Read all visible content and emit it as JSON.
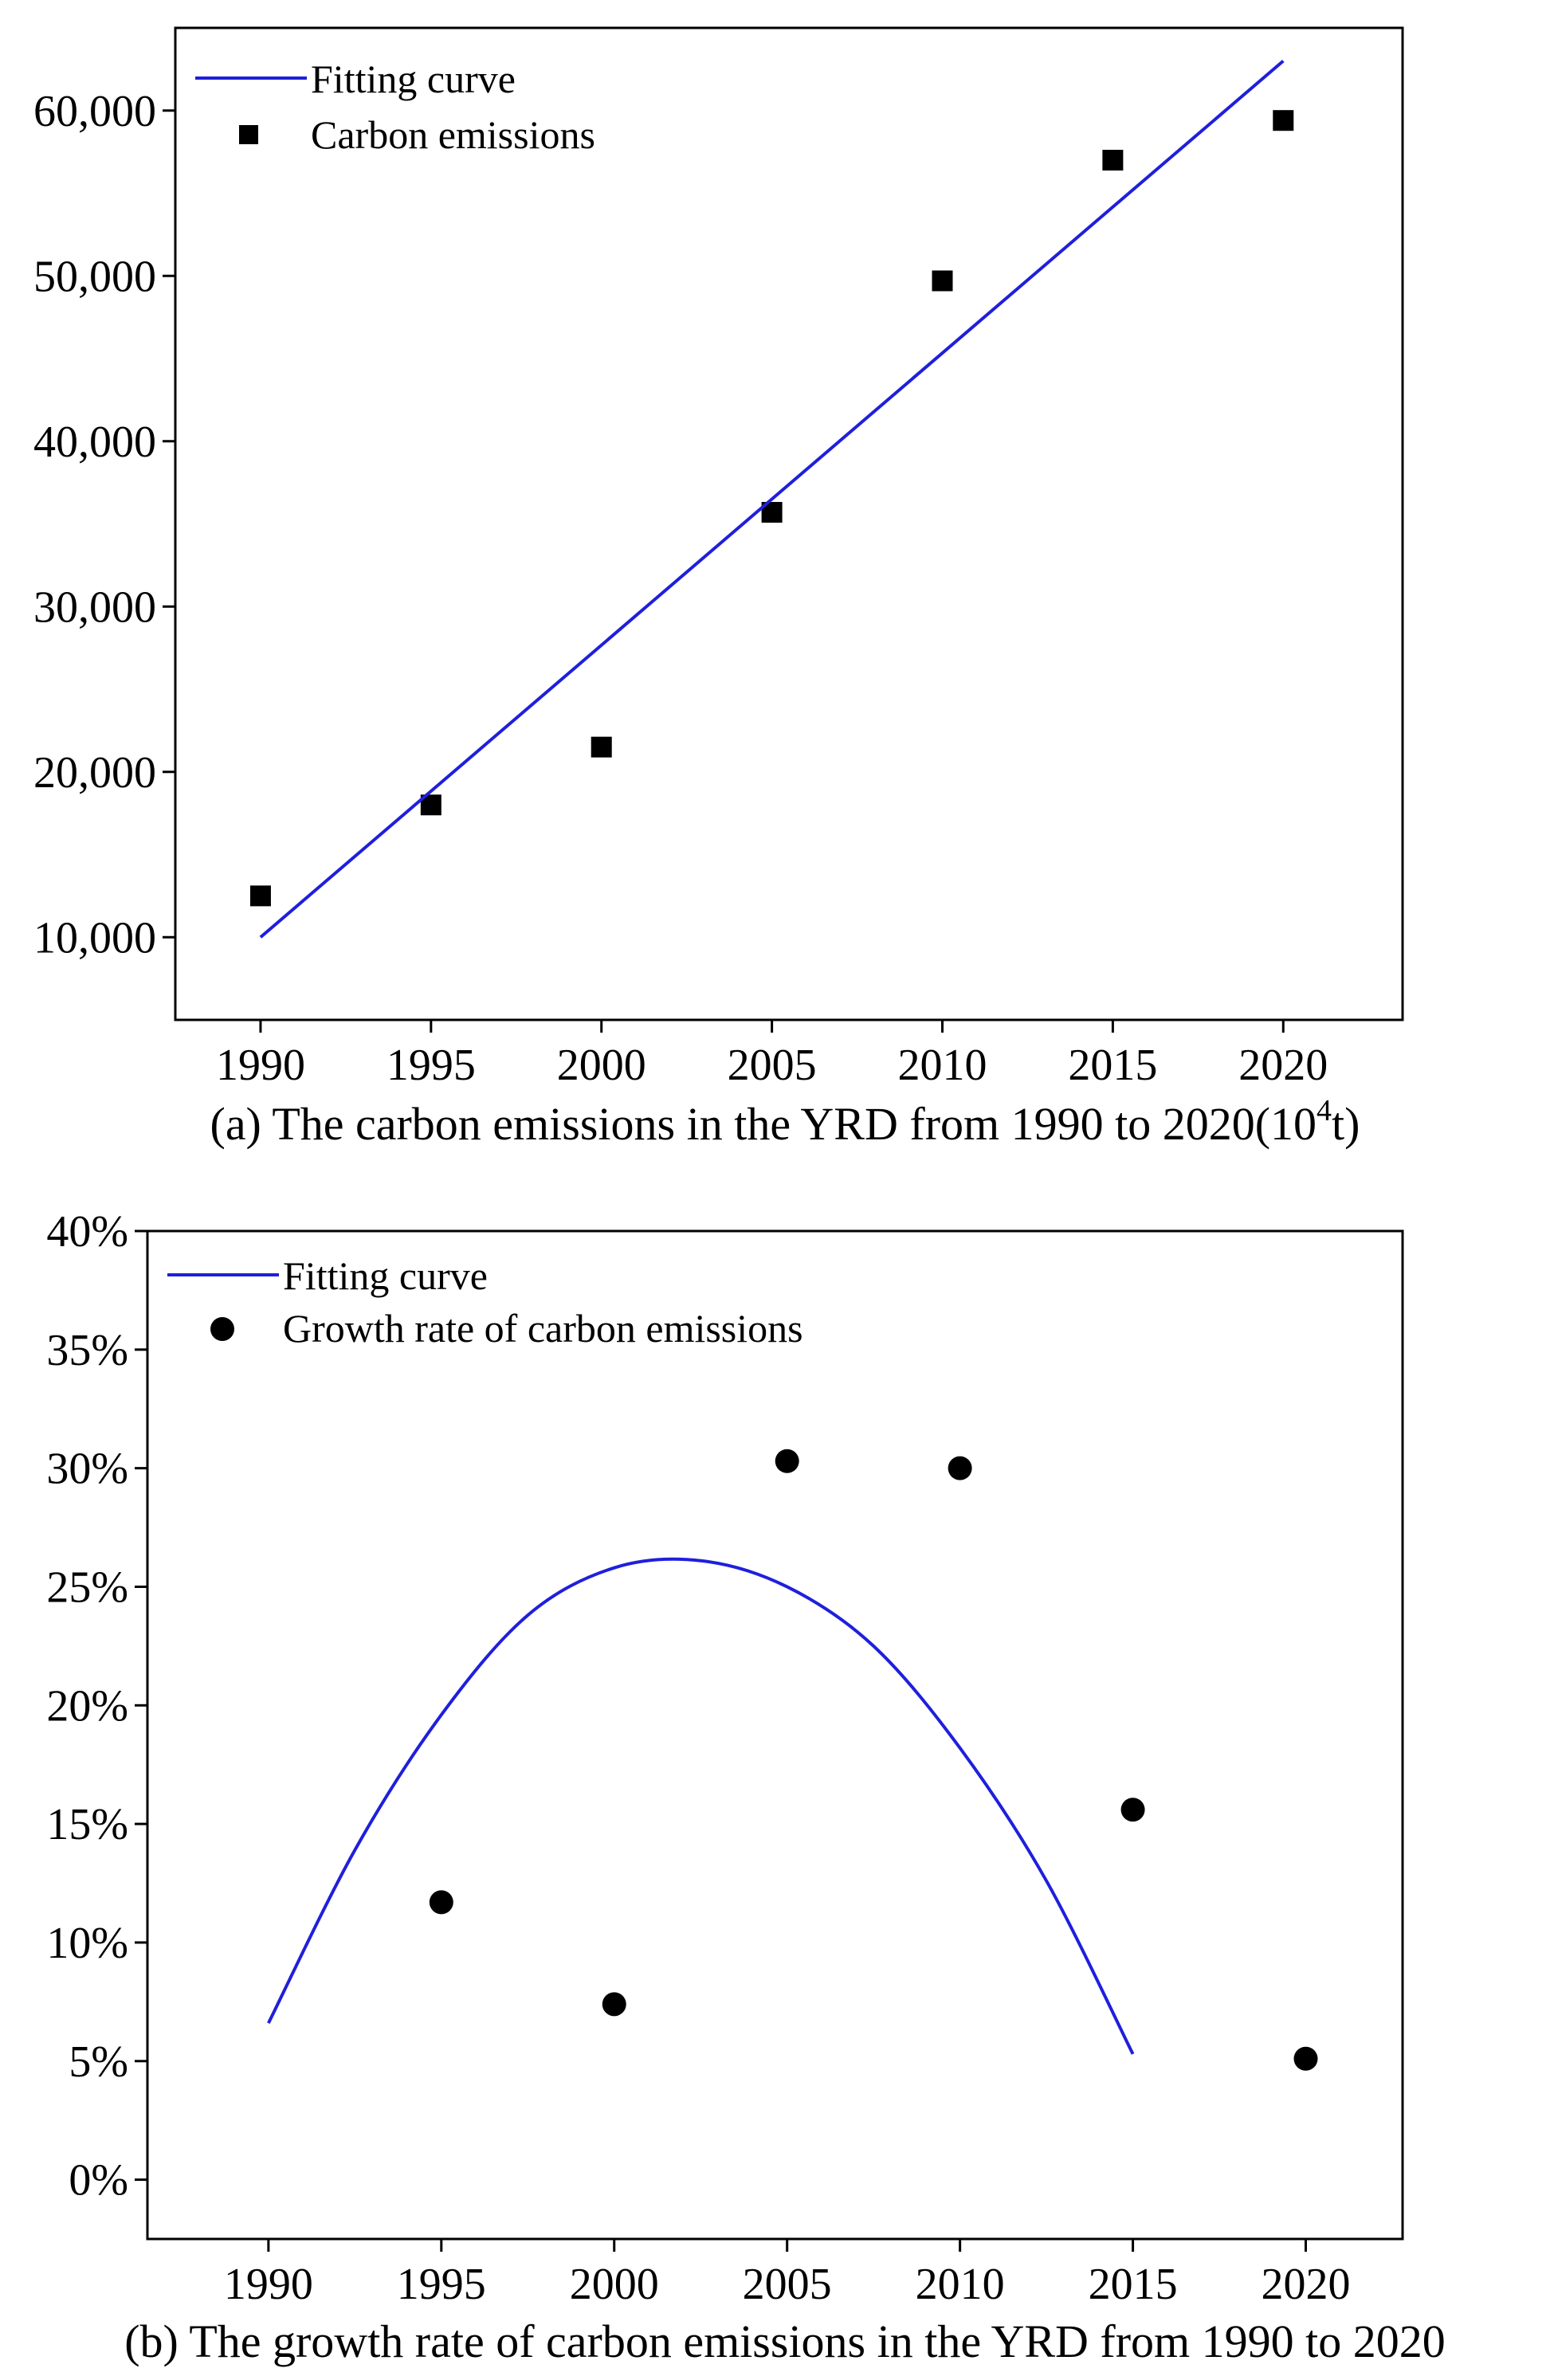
{
  "chart_data": [
    {
      "type": "scatter",
      "title": "",
      "caption_prefix": "(a) The carbon emissions in the YRD from 1990 to 2020(10",
      "caption_sup": "4",
      "caption_suffix": "t)",
      "xlabel": "",
      "ylabel": "",
      "xlim": [
        1987.5,
        2023.5
      ],
      "ylim": [
        5000,
        65000
      ],
      "x_ticks": [
        1990,
        1995,
        2000,
        2005,
        2010,
        2015,
        2020
      ],
      "x_tick_labels": [
        "1990",
        "1995",
        "2000",
        "2005",
        "2010",
        "2015",
        "2020"
      ],
      "y_ticks": [
        10000,
        20000,
        30000,
        40000,
        50000,
        60000
      ],
      "y_tick_labels": [
        "10,000",
        "20,000",
        "30,000",
        "40,000",
        "50,000",
        "60,000"
      ],
      "series": [
        {
          "name": "Carbon emissions",
          "kind": "points",
          "marker": "square",
          "color": "#000000",
          "x": [
            1990,
            1995,
            2000,
            2005,
            2010,
            2015,
            2020
          ],
          "y": [
            12500,
            18000,
            21500,
            35700,
            49700,
            57000,
            59400
          ]
        },
        {
          "name": "Fitting curve",
          "kind": "line",
          "color": "#1f1fdc",
          "x": [
            1990,
            2020
          ],
          "y": [
            10000,
            63000
          ]
        }
      ],
      "legend": [
        "Fitting curve",
        "Carbon emissions"
      ],
      "legend_position": "top-left"
    },
    {
      "type": "scatter",
      "title": "",
      "caption": "(b) The growth rate of carbon emissions in the YRD from 1990 to 2020",
      "xlabel": "",
      "ylabel": "",
      "xlim": [
        1986.5,
        2022.8
      ],
      "ylim": [
        -2.5,
        40
      ],
      "x_ticks": [
        1990,
        1995,
        2000,
        2005,
        2010,
        2015,
        2020
      ],
      "x_tick_labels": [
        "1990",
        "1995",
        "2000",
        "2005",
        "2010",
        "2015",
        "2020"
      ],
      "y_ticks": [
        0,
        5,
        10,
        15,
        20,
        25,
        30,
        35,
        40
      ],
      "y_tick_labels": [
        "0%",
        "5%",
        "10%",
        "15%",
        "20%",
        "25%",
        "30%",
        "35%",
        "40%"
      ],
      "series": [
        {
          "name": "Growth rate of carbon emissions",
          "kind": "points",
          "marker": "circle",
          "color": "#000000",
          "x": [
            1995,
            2000,
            2005,
            2010,
            2015,
            2020
          ],
          "y": [
            11.7,
            7.4,
            30.3,
            30.0,
            15.6,
            5.1
          ]
        },
        {
          "name": "Fitting curve",
          "kind": "line",
          "color": "#1f1fdc",
          "x": [
            1990,
            1992.5,
            1995,
            1997.5,
            2000,
            2002.5,
            2005,
            2007.5,
            2010,
            2012.5,
            2015
          ],
          "y": [
            6.6,
            13.9,
            19.6,
            23.8,
            25.8,
            26.1,
            25.0,
            22.5,
            18.2,
            12.6,
            5.3
          ]
        }
      ],
      "legend": [
        "Fitting curve",
        "Growth rate of carbon emissions"
      ],
      "legend_position": "top-left"
    }
  ]
}
